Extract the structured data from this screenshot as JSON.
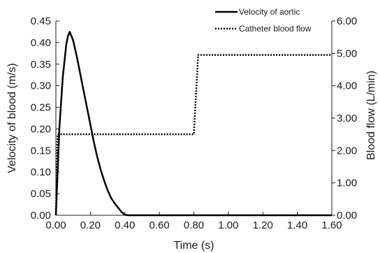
{
  "chart_data": {
    "type": "line",
    "xlabel": "Time (s)",
    "ylabel": "Velocity of blood (m/s)",
    "y2label": "Blood flow (L/min)",
    "xlim": [
      0,
      1.6
    ],
    "ylim": [
      0,
      0.45
    ],
    "y2lim": [
      0,
      6.0
    ],
    "x_ticks": [
      "0.00",
      "0.20",
      "0.40",
      "0.60",
      "0.80",
      "1.00",
      "1.20",
      "1.40",
      "1.60"
    ],
    "y_ticks": [
      "0.00",
      "0.05",
      "0.10",
      "0.15",
      "0.20",
      "0.25",
      "0.30",
      "0.35",
      "0.40",
      "0.45"
    ],
    "y2_ticks": [
      "0.00",
      "1.00",
      "2.00",
      "3.00",
      "4.00",
      "5.00",
      "6.00"
    ],
    "grid": false,
    "legend_position": "top-right",
    "series": [
      {
        "name": "Velocity of aortic",
        "axis": "left",
        "style": "solid",
        "color": "#000000",
        "x": [
          0,
          0.02,
          0.04,
          0.06,
          0.07,
          0.08,
          0.1,
          0.12,
          0.14,
          0.16,
          0.18,
          0.2,
          0.22,
          0.24,
          0.26,
          0.28,
          0.3,
          0.32,
          0.34,
          0.36,
          0.38,
          0.4,
          0.42,
          1.6
        ],
        "y": [
          0,
          0.2,
          0.32,
          0.395,
          0.415,
          0.425,
          0.405,
          0.37,
          0.33,
          0.29,
          0.25,
          0.21,
          0.17,
          0.135,
          0.105,
          0.08,
          0.058,
          0.04,
          0.028,
          0.018,
          0.008,
          0.001,
          0.0,
          0.0
        ]
      },
      {
        "name": "Catheter blood flow",
        "axis": "right",
        "style": "dotted",
        "color": "#000000",
        "x": [
          0,
          0.01,
          0.8,
          0.825,
          1.6
        ],
        "y": [
          0,
          2.5,
          2.5,
          4.95,
          4.95
        ]
      }
    ]
  }
}
